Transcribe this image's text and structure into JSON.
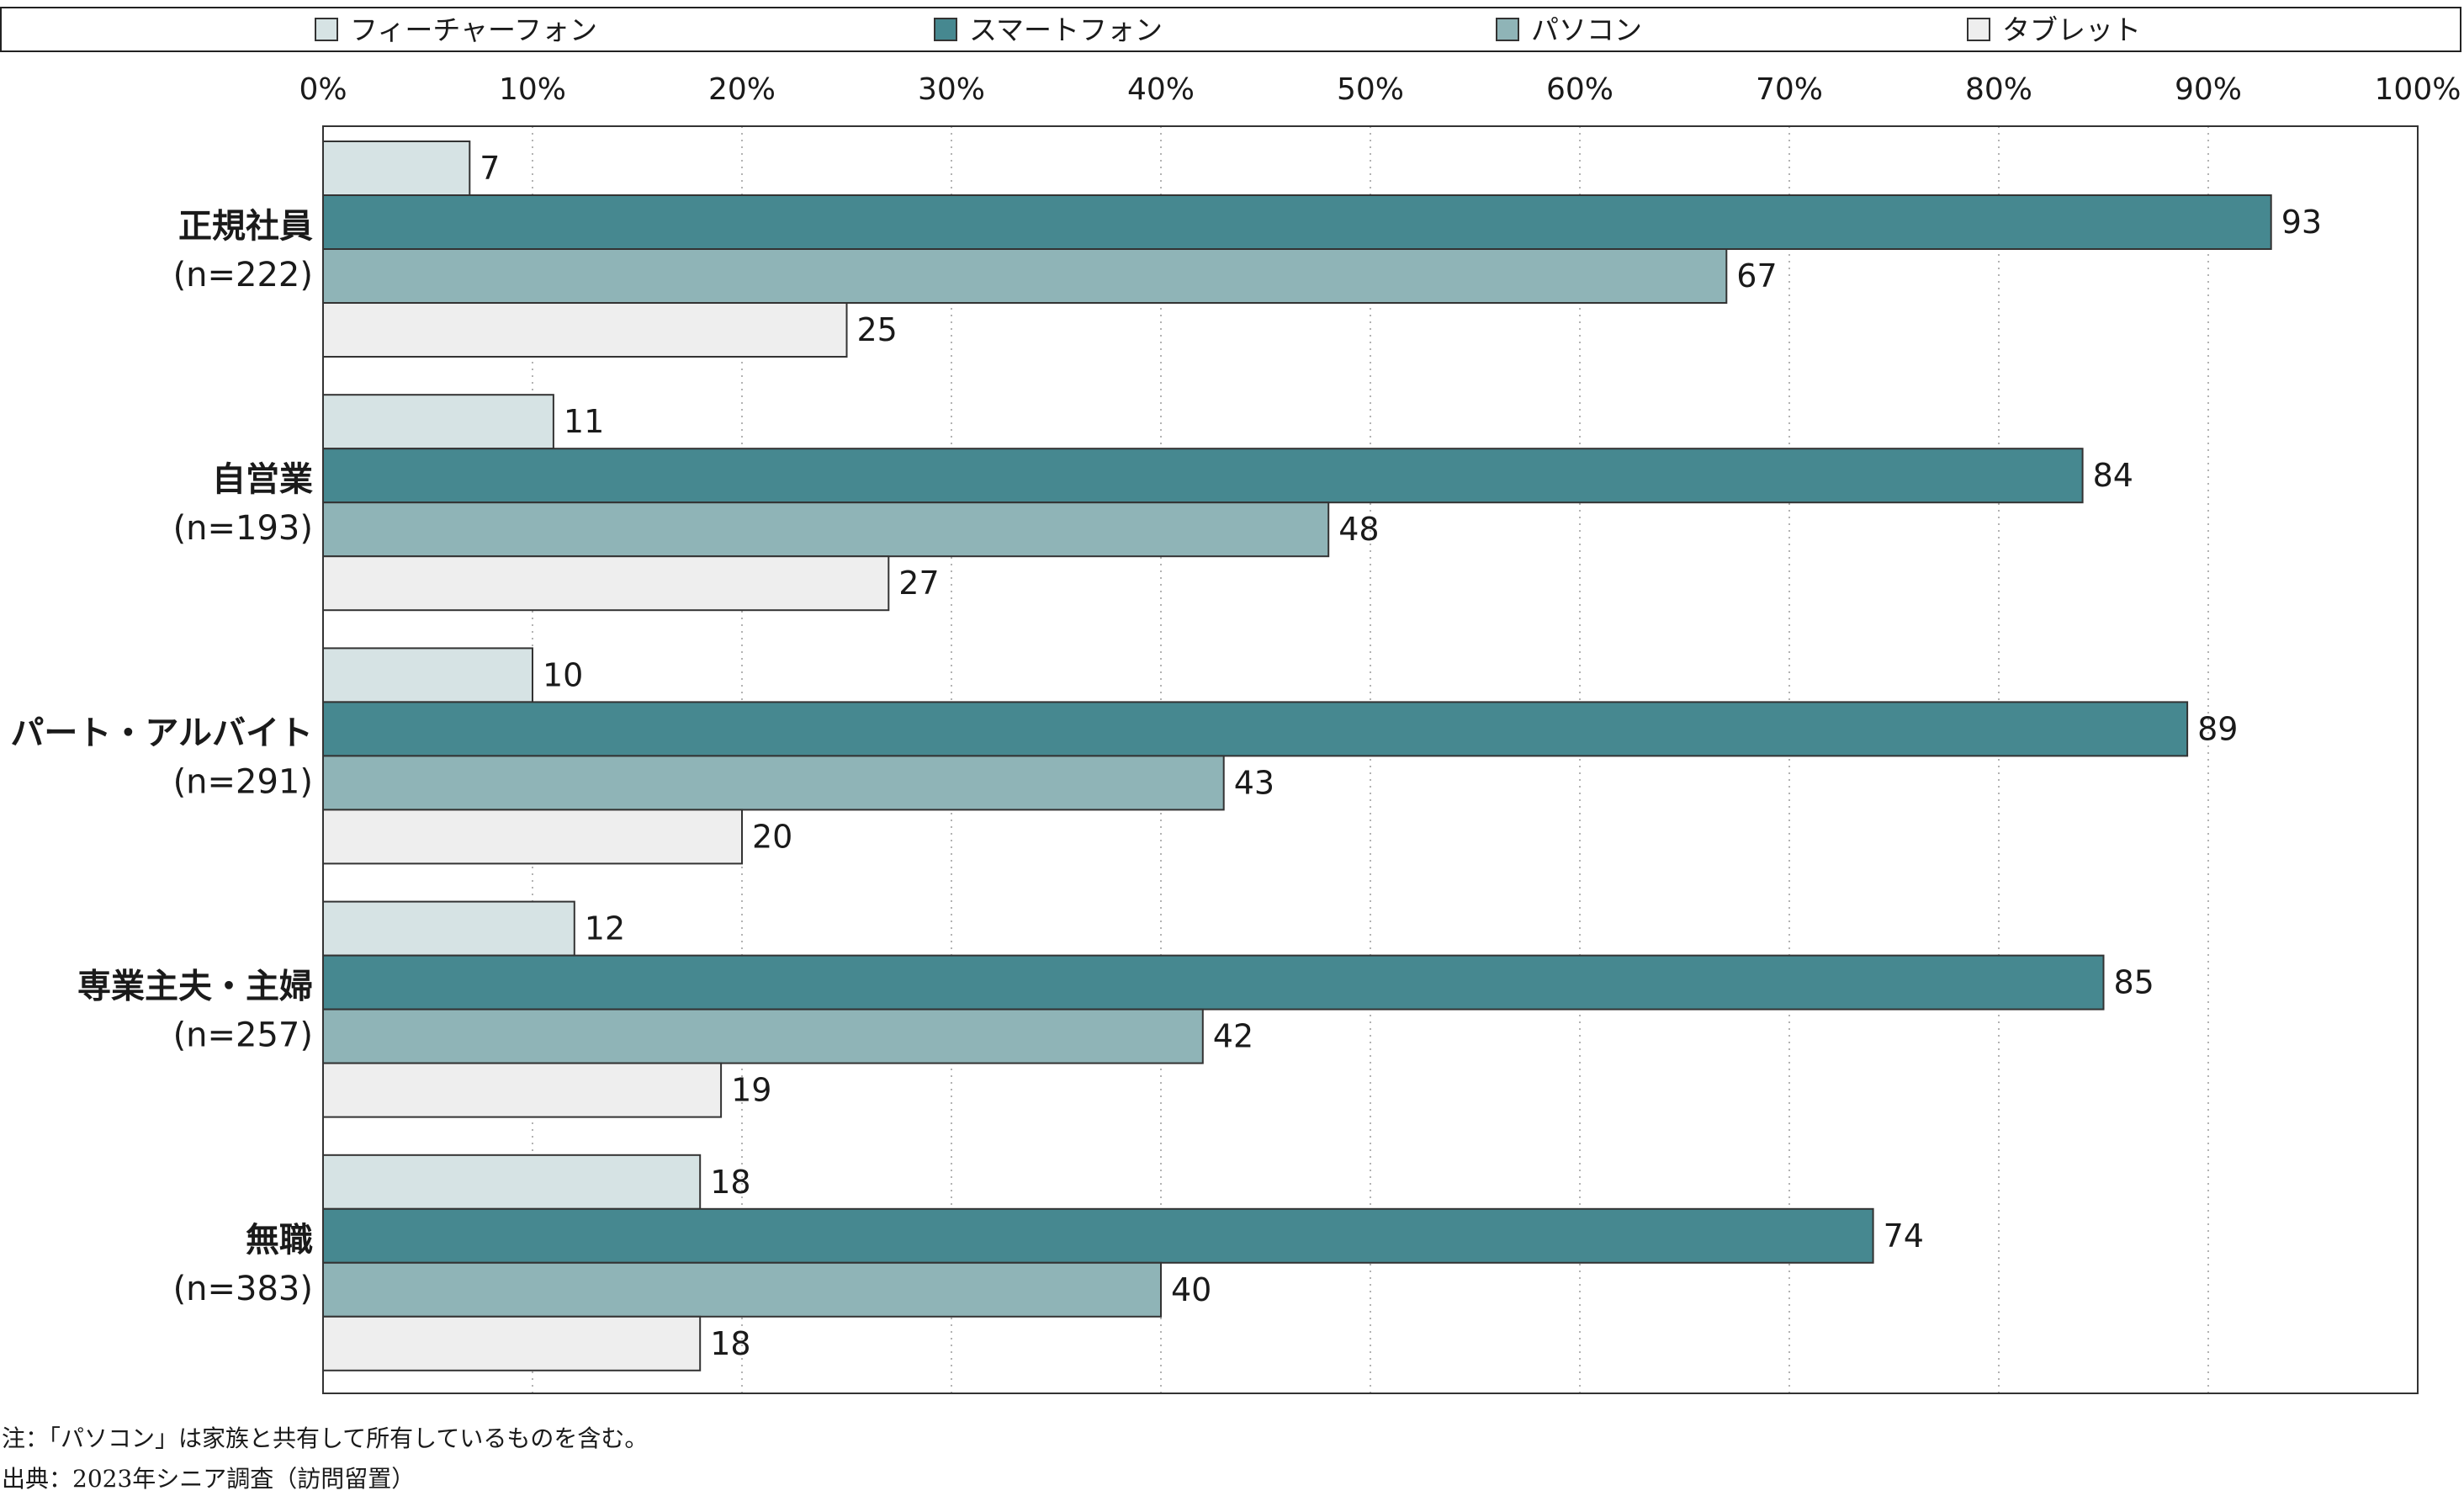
{
  "chart_data": {
    "type": "bar",
    "orientation": "horizontal",
    "title": "",
    "categories": [
      {
        "name": "正規社員",
        "n": "(n=222)"
      },
      {
        "name": "自営業",
        "n": "(n=193)"
      },
      {
        "name": "パート・アルバイト",
        "n": "(n=291)"
      },
      {
        "name": "専業主夫・主婦",
        "n": "(n=257)"
      },
      {
        "name": "無職",
        "n": "(n=383)"
      }
    ],
    "series": [
      {
        "name": "フィーチャーフォン",
        "color": "#d6e3e4",
        "values": [
          7,
          11,
          10,
          12,
          18
        ]
      },
      {
        "name": "スマートフォン",
        "color": "#468890",
        "values": [
          93,
          84,
          89,
          85,
          74
        ]
      },
      {
        "name": "パソコン",
        "color": "#8fb4b7",
        "values": [
          67,
          48,
          43,
          42,
          40
        ]
      },
      {
        "name": "タブレット",
        "color": "#eeeeee",
        "values": [
          25,
          27,
          20,
          19,
          18
        ]
      }
    ],
    "xlim": [
      0,
      100
    ],
    "x_ticks": [
      "0%",
      "10%",
      "20%",
      "30%",
      "40%",
      "50%",
      "60%",
      "70%",
      "80%",
      "90%",
      "100%"
    ],
    "grid": "vertical dotted",
    "legend_position": "top"
  },
  "notes": {
    "note": "注：「パソコン」は家族と共有して所有しているものを含む。",
    "source": "出典：2023年シニア調査（訪問留置）"
  }
}
